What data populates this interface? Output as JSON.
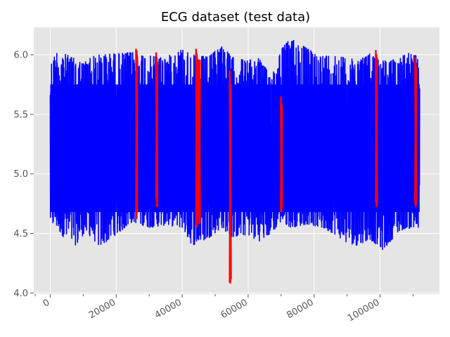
{
  "chart_data": {
    "type": "line",
    "title": "ECG dataset (test data)",
    "xlabel": "",
    "ylabel": "",
    "xlim": [
      -5000,
      118000
    ],
    "ylim": [
      3.99,
      6.23
    ],
    "grid": true,
    "background_color": "#e5e5e5",
    "grid_color": "#ffffff",
    "x_ticks": [
      0,
      20000,
      40000,
      60000,
      80000,
      100000
    ],
    "x_tick_labels": [
      "0",
      "20000",
      "40000",
      "60000",
      "80000",
      "100000"
    ],
    "x_minor_ticks": [
      10000,
      30000,
      50000,
      70000,
      90000,
      110000
    ],
    "y_ticks": [
      4.0,
      4.5,
      5.0,
      5.5,
      6.0
    ],
    "y_tick_labels": [
      "4.0",
      "4.5",
      "5.0",
      "5.5",
      "6.0"
    ],
    "series": [
      {
        "role": "normal",
        "color": "#0000ff",
        "x_range": [
          0,
          112000
        ],
        "envelope": [
          {
            "x": 0,
            "low": 4.58,
            "high": 5.92
          },
          {
            "x": 2000,
            "low": 4.55,
            "high": 6.03
          },
          {
            "x": 5000,
            "low": 4.43,
            "high": 6.0
          },
          {
            "x": 8000,
            "low": 4.4,
            "high": 5.96
          },
          {
            "x": 10000,
            "low": 4.49,
            "high": 5.93
          },
          {
            "x": 12000,
            "low": 4.48,
            "high": 5.98
          },
          {
            "x": 15000,
            "low": 4.39,
            "high": 6.0
          },
          {
            "x": 20000,
            "low": 4.49,
            "high": 6.01
          },
          {
            "x": 25000,
            "low": 4.6,
            "high": 6.02
          },
          {
            "x": 30000,
            "low": 4.55,
            "high": 5.99
          },
          {
            "x": 35000,
            "low": 4.57,
            "high": 5.98
          },
          {
            "x": 40000,
            "low": 4.55,
            "high": 6.05
          },
          {
            "x": 43000,
            "low": 4.4,
            "high": 6.0
          },
          {
            "x": 48000,
            "low": 4.46,
            "high": 5.98
          },
          {
            "x": 52000,
            "low": 4.55,
            "high": 6.09
          },
          {
            "x": 55000,
            "low": 4.47,
            "high": 5.98
          },
          {
            "x": 60000,
            "low": 4.49,
            "high": 5.95
          },
          {
            "x": 63000,
            "low": 4.43,
            "high": 5.98
          },
          {
            "x": 67000,
            "low": 4.5,
            "high": 5.82
          },
          {
            "x": 70000,
            "low": 4.6,
            "high": 6.05
          },
          {
            "x": 73000,
            "low": 4.55,
            "high": 6.14
          },
          {
            "x": 78000,
            "low": 4.58,
            "high": 6.05
          },
          {
            "x": 82000,
            "low": 4.55,
            "high": 5.99
          },
          {
            "x": 86000,
            "low": 4.5,
            "high": 6.0
          },
          {
            "x": 90000,
            "low": 4.42,
            "high": 5.97
          },
          {
            "x": 93000,
            "low": 4.4,
            "high": 5.96
          },
          {
            "x": 97000,
            "low": 4.45,
            "high": 6.01
          },
          {
            "x": 101000,
            "low": 4.36,
            "high": 5.95
          },
          {
            "x": 105000,
            "low": 4.5,
            "high": 5.96
          },
          {
            "x": 108000,
            "low": 4.55,
            "high": 6.02
          },
          {
            "x": 112000,
            "low": 4.52,
            "high": 5.98
          }
        ]
      },
      {
        "role": "anomaly",
        "color": "#ff0000",
        "segments": [
          {
            "x": 26200,
            "low": 4.62,
            "high": 6.05
          },
          {
            "x": 32300,
            "low": 4.72,
            "high": 6.02
          },
          {
            "x": 44400,
            "low": 4.55,
            "high": 6.05
          },
          {
            "x": 45200,
            "low": 4.58,
            "high": 5.96
          },
          {
            "x": 54600,
            "low": 4.08,
            "high": 5.87
          },
          {
            "x": 70100,
            "low": 4.68,
            "high": 5.65
          },
          {
            "x": 98900,
            "low": 4.72,
            "high": 6.04
          },
          {
            "x": 110800,
            "low": 4.72,
            "high": 5.98
          }
        ]
      }
    ]
  }
}
